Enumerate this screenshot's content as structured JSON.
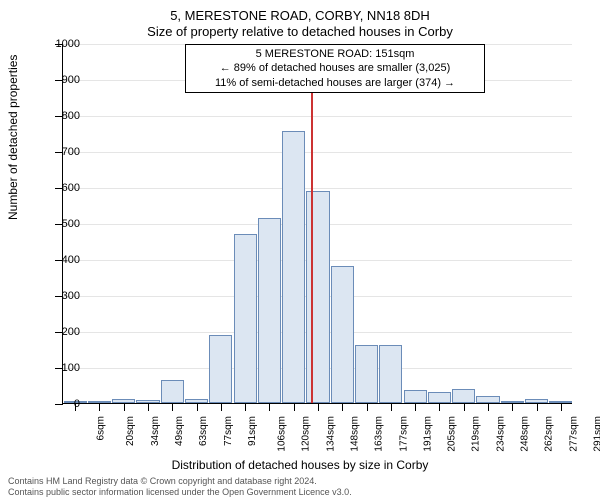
{
  "titles": {
    "main": "5, MERESTONE ROAD, CORBY, NN18 8DH",
    "sub": "Size of property relative to detached houses in Corby",
    "y_axis": "Number of detached properties",
    "x_axis": "Distribution of detached houses by size in Corby"
  },
  "annotation": {
    "line1": "5 MERESTONE ROAD: 151sqm",
    "line2": "← 89% of detached houses are smaller (3,025)",
    "line3": "11% of semi-detached houses are larger (374) →"
  },
  "footer": {
    "line1": "Contains HM Land Registry data © Crown copyright and database right 2024.",
    "line2": "Contains public sector information licensed under the Open Government Licence v3.0."
  },
  "chart": {
    "type": "histogram",
    "ylim": [
      0,
      1000
    ],
    "ytick_step": 100,
    "x_categories": [
      "6sqm",
      "20sqm",
      "34sqm",
      "49sqm",
      "63sqm",
      "77sqm",
      "91sqm",
      "106sqm",
      "120sqm",
      "134sqm",
      "148sqm",
      "163sqm",
      "177sqm",
      "191sqm",
      "205sqm",
      "219sqm",
      "234sqm",
      "248sqm",
      "262sqm",
      "277sqm",
      "291sqm"
    ],
    "values": [
      0,
      5,
      12,
      8,
      65,
      12,
      190,
      470,
      515,
      755,
      590,
      380,
      160,
      160,
      35,
      30,
      40,
      20,
      5,
      12,
      5
    ],
    "bar_fill": "#dce6f2",
    "bar_stroke": "#6b8cb8",
    "grid_color": "#e5e5e5",
    "background": "#ffffff",
    "reference_line": {
      "position_index": 10.2,
      "color": "#cc3333"
    }
  }
}
